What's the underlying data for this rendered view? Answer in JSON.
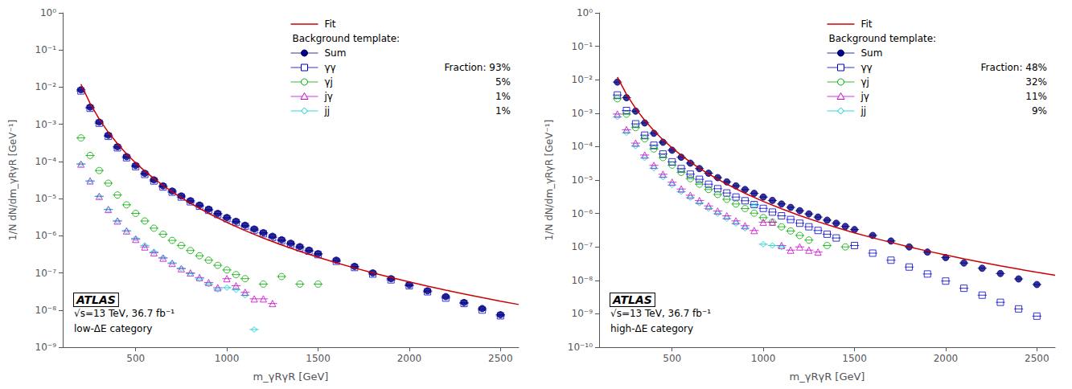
{
  "chart_data": [
    {
      "type": "scatter",
      "x_label": "m_γRγR [GeV]",
      "y_label": "1/N dN/dm_γRγR [GeV⁻¹]",
      "annotations": [
        "ATLAS",
        "√s=13 TeV, 36.7 fb⁻¹",
        "low-ΔE category"
      ],
      "legend_title": "Background template:",
      "legend": "upper right",
      "log": "y",
      "grid": false,
      "xlim": [
        100,
        2600
      ],
      "xticks": [
        500,
        1000,
        1500,
        2000,
        2500
      ],
      "ylim": [
        1e-09,
        1
      ],
      "yticks": [
        {
          "value": 1e-09,
          "label": "10⁻⁹"
        },
        {
          "value": 1e-08,
          "label": "10⁻⁸"
        },
        {
          "value": 1e-07,
          "label": "10⁻⁷"
        },
        {
          "value": 1e-06,
          "label": "10⁻⁶"
        },
        {
          "value": 1e-05,
          "label": "10⁻⁵"
        },
        {
          "value": 0.0001,
          "label": "10⁻⁴"
        },
        {
          "value": 0.001,
          "label": "10⁻³"
        },
        {
          "value": 0.01,
          "label": "10⁻²"
        },
        {
          "value": 0.1,
          "label": "10⁻¹"
        },
        {
          "value": 1,
          "label": "10⁰"
        }
      ],
      "xerr": 25,
      "series": [
        {
          "name": "Fit",
          "type": "line",
          "color": "#cc0000",
          "x": [
            200,
            250,
            300,
            350,
            400,
            450,
            500,
            550,
            600,
            650,
            700,
            750,
            800,
            900,
            1000,
            1100,
            1200,
            1300,
            1400,
            1500,
            1600,
            1700,
            1800,
            1900,
            2000,
            2100,
            2200,
            2300,
            2400,
            2500,
            2600
          ],
          "values": [
            0.012,
            0.00366,
            0.00139,
            0.000611,
            0.0003,
            0.00016,
            9.15e-05,
            5.51e-05,
            3.47e-05,
            2.26e-05,
            1.53e-05,
            1.06e-05,
            7.5e-06,
            4.01e-06,
            2.29e-06,
            1.38e-06,
            8.67e-07,
            5.66e-07,
            3.81e-07,
            2.64e-07,
            1.87e-07,
            1.36e-07,
            1e-07,
            7.51e-08,
            5.72e-08,
            4.41e-08,
            3.44e-08,
            2.72e-08,
            2.17e-08,
            1.74e-08,
            1.41e-08
          ]
        },
        {
          "name": "Sum",
          "color": "#000080",
          "marker": "filled_circle",
          "x": [
            200,
            250,
            300,
            350,
            400,
            450,
            500,
            550,
            600,
            650,
            700,
            750,
            800,
            850,
            900,
            950,
            1000,
            1050,
            1100,
            1150,
            1200,
            1250,
            1300,
            1350,
            1400,
            1450,
            1500,
            1600,
            1700,
            1800,
            1900,
            2000,
            2100,
            2200,
            2300,
            2400,
            2500
          ],
          "values": [
            0.0085,
            0.0029,
            0.00115,
            0.00051,
            0.00025,
            0.000135,
            7.8e-05,
            4.8e-05,
            3.2e-05,
            2.2e-05,
            1.6e-05,
            1.18e-05,
            8.8e-06,
            6.7e-06,
            5.2e-06,
            4e-06,
            3.1e-06,
            2.45e-06,
            1.92e-06,
            1.52e-06,
            1.21e-06,
            9.7e-07,
            7.8e-07,
            6.3e-07,
            5.1e-07,
            4.1e-07,
            3.3e-07,
            2.2e-07,
            1.5e-07,
            1e-07,
            7e-08,
            4.8e-08,
            3.3e-08,
            2.3e-08,
            1.6e-08,
            1.1e-08,
            7.5e-09
          ]
        },
        {
          "name": "γγ",
          "color": "#0000cc",
          "marker": "open_square",
          "fraction": "Fraction: 93%",
          "x": [
            200,
            250,
            300,
            350,
            400,
            450,
            500,
            550,
            600,
            650,
            700,
            750,
            800,
            850,
            900,
            950,
            1000,
            1050,
            1100,
            1150,
            1200,
            1250,
            1300,
            1350,
            1400,
            1450,
            1500,
            1600,
            1700,
            1800,
            1900,
            2000,
            2100,
            2200,
            2300,
            2400,
            2500
          ],
          "values": [
            0.0079,
            0.0027,
            0.00107,
            0.000475,
            0.000233,
            0.000126,
            7.27e-05,
            4.48e-05,
            2.98e-05,
            2.05e-05,
            1.49e-05,
            1.1e-05,
            8.2e-06,
            6.24e-06,
            4.85e-06,
            3.73e-06,
            2.89e-06,
            2.28e-06,
            1.79e-06,
            1.42e-06,
            1.13e-06,
            9e-07,
            7.27e-07,
            5.87e-07,
            4.75e-07,
            3.84e-07,
            3.1e-07,
            2.05e-07,
            1.4e-07,
            9.3e-08,
            6.5e-08,
            4.5e-08,
            3.1e-08,
            2.1e-08,
            1.5e-08,
            1e-08,
            7e-09
          ]
        },
        {
          "name": "γj",
          "color": "#00aa00",
          "marker": "open_circle",
          "fraction": "5%",
          "x": [
            200,
            250,
            300,
            350,
            400,
            450,
            500,
            550,
            600,
            650,
            700,
            750,
            800,
            850,
            900,
            950,
            1000,
            1050,
            1100,
            1200,
            1300,
            1400,
            1500
          ],
          "values": [
            0.00043,
            0.000145,
            5.7e-05,
            2.6e-05,
            1.25e-05,
            6.8e-06,
            4e-06,
            2.5e-06,
            1.6e-06,
            1.1e-06,
            7.5e-07,
            5.5e-07,
            4e-07,
            2.9e-07,
            2.2e-07,
            1.6e-07,
            1.2e-07,
            9e-08,
            7e-08,
            5e-08,
            8e-08,
            5e-08,
            5e-08
          ]
        },
        {
          "name": "jγ",
          "color": "#cc00cc",
          "marker": "open_triangle",
          "fraction": "1%",
          "x": [
            200,
            250,
            300,
            350,
            400,
            450,
            500,
            550,
            600,
            650,
            700,
            750,
            800,
            850,
            900,
            950,
            1000,
            1050,
            1100,
            1150,
            1200,
            1250
          ],
          "values": [
            8.5e-05,
            3e-05,
            1.15e-05,
            5.1e-06,
            2.5e-06,
            1.35e-06,
            8e-07,
            5e-07,
            3.5e-07,
            2.5e-07,
            1.8e-07,
            1.3e-07,
            1e-07,
            7.5e-08,
            5.5e-08,
            4e-08,
            7e-08,
            4.5e-08,
            3e-08,
            2e-08,
            2e-08,
            1.5e-08
          ]
        },
        {
          "name": "jj",
          "color": "#00cccc",
          "marker": "open_diamond",
          "fraction": "1%",
          "x": [
            200,
            250,
            300,
            350,
            400,
            450,
            500,
            550,
            600,
            650,
            700,
            750,
            800,
            850,
            900,
            950,
            1000,
            1050,
            1100,
            1150
          ],
          "values": [
            8.5e-05,
            2.9e-05,
            1.15e-05,
            5.1e-06,
            2.5e-06,
            1.35e-06,
            8.5e-07,
            5.5e-07,
            3.7e-07,
            2.6e-07,
            1.85e-07,
            1.33e-07,
            9.5e-08,
            6.9e-08,
            5e-08,
            3.6e-08,
            4e-08,
            3.5e-08,
            2.5e-08,
            3e-09
          ]
        }
      ]
    },
    {
      "type": "scatter",
      "x_label": "m_γRγR [GeV]",
      "y_label": "1/N dN/dm_γRγR [GeV⁻¹]",
      "annotations": [
        "ATLAS",
        "√s=13 TeV, 36.7 fb⁻¹",
        "high-ΔE category"
      ],
      "legend_title": "Background template:",
      "legend": "upper right",
      "log": "y",
      "grid": false,
      "xlim": [
        100,
        2600
      ],
      "xticks": [
        500,
        1000,
        1500,
        2000,
        2500
      ],
      "ylim": [
        1e-10,
        1
      ],
      "yticks": [
        {
          "value": 1e-10,
          "label": "10⁻¹⁰"
        },
        {
          "value": 1e-09,
          "label": "10⁻⁹"
        },
        {
          "value": 1e-08,
          "label": "10⁻⁸"
        },
        {
          "value": 1e-07,
          "label": "10⁻⁷"
        },
        {
          "value": 1e-06,
          "label": "10⁻⁶"
        },
        {
          "value": 1e-05,
          "label": "10⁻⁵"
        },
        {
          "value": 0.0001,
          "label": "10⁻⁴"
        },
        {
          "value": 0.001,
          "label": "10⁻³"
        },
        {
          "value": 0.01,
          "label": "10⁻²"
        },
        {
          "value": 0.1,
          "label": "10⁻¹"
        },
        {
          "value": 1,
          "label": "10⁰"
        }
      ],
      "xerr": 25,
      "series": [
        {
          "name": "Fit",
          "type": "line",
          "color": "#cc0000",
          "x": [
            200,
            250,
            300,
            350,
            400,
            450,
            500,
            550,
            600,
            650,
            700,
            750,
            800,
            900,
            1000,
            1100,
            1200,
            1300,
            1400,
            1500,
            1600,
            1700,
            1800,
            1900,
            2000,
            2100,
            2200,
            2300,
            2400,
            2500,
            2600
          ],
          "values": [
            0.012,
            0.00366,
            0.00139,
            0.000611,
            0.0003,
            0.00016,
            9.15e-05,
            5.51e-05,
            3.47e-05,
            2.26e-05,
            1.53e-05,
            1.06e-05,
            7.5e-06,
            4.01e-06,
            2.29e-06,
            1.38e-06,
            8.67e-07,
            5.66e-07,
            3.81e-07,
            2.64e-07,
            1.87e-07,
            1.36e-07,
            1e-07,
            7.51e-08,
            5.72e-08,
            4.41e-08,
            3.44e-08,
            2.72e-08,
            2.17e-08,
            1.74e-08,
            1.41e-08
          ]
        },
        {
          "name": "Sum",
          "color": "#000080",
          "marker": "filled_circle",
          "x": [
            200,
            250,
            300,
            350,
            400,
            450,
            500,
            550,
            600,
            650,
            700,
            750,
            800,
            850,
            900,
            950,
            1000,
            1050,
            1100,
            1150,
            1200,
            1250,
            1300,
            1350,
            1400,
            1450,
            1500,
            1600,
            1700,
            1800,
            1900,
            2000,
            2100,
            2200,
            2300,
            2400,
            2500
          ],
          "values": [
            0.0085,
            0.0029,
            0.00115,
            0.00051,
            0.00025,
            0.000135,
            7.8e-05,
            4.8e-05,
            3.2e-05,
            2.2e-05,
            1.6e-05,
            1.18e-05,
            8.8e-06,
            6.7e-06,
            5.2e-06,
            4e-06,
            3.1e-06,
            2.45e-06,
            1.92e-06,
            1.52e-06,
            1.21e-06,
            9.7e-07,
            7.8e-07,
            6.3e-07,
            5.1e-07,
            4.1e-07,
            3.3e-07,
            2.2e-07,
            1.5e-07,
            1e-07,
            7e-08,
            4.8e-08,
            3.3e-08,
            2.3e-08,
            1.6e-08,
            1.1e-08,
            7.5e-09
          ]
        },
        {
          "name": "γγ",
          "color": "#0000cc",
          "marker": "open_square",
          "fraction": "Fraction: 48%",
          "x": [
            200,
            250,
            300,
            350,
            400,
            450,
            500,
            550,
            600,
            650,
            700,
            750,
            800,
            850,
            900,
            950,
            1000,
            1050,
            1100,
            1150,
            1200,
            1250,
            1300,
            1350,
            1400,
            1500,
            1600,
            1700,
            1800,
            1900,
            2000,
            2100,
            2200,
            2300,
            2400,
            2500
          ],
          "values": [
            0.0035,
            0.0012,
            0.00048,
            0.00022,
            0.00011,
            6e-05,
            3.5e-05,
            2.2e-05,
            1.5e-05,
            1.05e-05,
            7.5e-06,
            5.5e-06,
            4.1e-06,
            3.1e-06,
            2.4e-06,
            1.85e-06,
            1.42e-06,
            1.1e-06,
            8.5e-07,
            6.6e-07,
            5.1e-07,
            4e-07,
            3.1e-07,
            2.4e-07,
            1.85e-07,
            1.1e-07,
            6.5e-08,
            4e-08,
            2.5e-08,
            1.55e-08,
            9.5e-09,
            5.8e-09,
            3.6e-09,
            2.2e-09,
            1.4e-09,
            8.5e-10
          ]
        },
        {
          "name": "γj",
          "color": "#00aa00",
          "marker": "open_circle",
          "fraction": "32%",
          "x": [
            200,
            250,
            300,
            350,
            400,
            450,
            500,
            550,
            600,
            650,
            700,
            750,
            800,
            850,
            900,
            950,
            1000,
            1050,
            1100,
            1150,
            1200,
            1250,
            1350,
            1450
          ],
          "values": [
            0.0027,
            0.00093,
            0.00037,
            0.00017,
            8.5e-05,
            4.7e-05,
            2.8e-05,
            1.7e-05,
            1.1e-05,
            7.5e-06,
            5.2e-06,
            3.7e-06,
            2.65e-06,
            1.92e-06,
            1.4e-06,
            1.02e-06,
            7.5e-07,
            5.5e-07,
            4e-07,
            3e-07,
            2.2e-07,
            1.6e-07,
            1.1e-07,
            1e-07
          ]
        },
        {
          "name": "jγ",
          "color": "#cc00cc",
          "marker": "open_triangle",
          "fraction": "11%",
          "x": [
            200,
            250,
            300,
            350,
            400,
            450,
            500,
            550,
            600,
            650,
            700,
            750,
            800,
            850,
            900,
            950,
            1000,
            1050,
            1100,
            1150,
            1200,
            1250,
            1300
          ],
          "values": [
            0.00094,
            0.00032,
            0.000127,
            5.6e-05,
            2.75e-05,
            1.49e-05,
            8.6e-06,
            5.4e-06,
            3.5e-06,
            2.42e-06,
            1.68e-06,
            1.18e-06,
            8.5e-07,
            6e-07,
            4.3e-07,
            3.1e-07,
            5.5e-07,
            5.5e-07,
            1.1e-07,
            8e-08,
            1e-07,
            8e-08,
            7e-08
          ]
        },
        {
          "name": "jj",
          "color": "#00cccc",
          "marker": "open_diamond",
          "fraction": "9%",
          "x": [
            200,
            250,
            300,
            350,
            400,
            450,
            500,
            550,
            600,
            650,
            700,
            750,
            800,
            850,
            900,
            950,
            1000,
            1050,
            1100
          ],
          "values": [
            0.00077,
            0.00026,
            0.000104,
            4.6e-05,
            2.25e-05,
            1.22e-05,
            7.1e-06,
            4.5e-06,
            2.98e-06,
            2.04e-06,
            1.41e-06,
            9.9e-07,
            7e-07,
            5e-07,
            3.6e-07,
            1.8e-06,
            1.2e-07,
            1.1e-07,
            1e-07
          ]
        }
      ]
    }
  ]
}
